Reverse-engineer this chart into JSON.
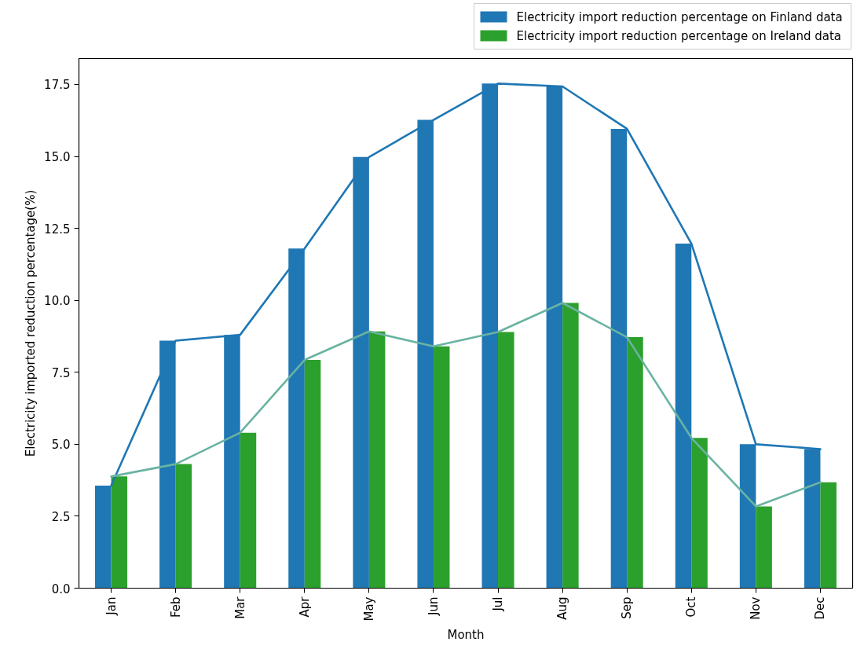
{
  "chart_data": {
    "type": "bar",
    "xlabel": "Month",
    "ylabel": "Electricity imported reduction percentage(%)",
    "categories": [
      "Jan",
      "Feb",
      "Mar",
      "Apr",
      "May",
      "Jun",
      "Jul",
      "Aug",
      "Sep",
      "Oct",
      "Nov",
      "Dec"
    ],
    "series": [
      {
        "name": "Electricity import reduction percentage on Finland data",
        "color": "#1f77b4",
        "values": [
          3.56,
          8.6,
          8.8,
          11.8,
          14.98,
          16.27,
          17.53,
          17.43,
          15.96,
          11.97,
          5.0,
          4.83
        ]
      },
      {
        "name": "Electricity import reduction percentage on Ireland data",
        "color": "#2ca02c",
        "values": [
          3.88,
          4.31,
          5.4,
          7.93,
          8.92,
          8.4,
          8.9,
          9.91,
          8.72,
          5.22,
          2.84,
          3.68
        ]
      },
      {
        "type": "line",
        "color": "#1f77b4",
        "values": [
          3.56,
          8.6,
          8.8,
          11.8,
          14.98,
          16.27,
          17.53,
          17.43,
          15.96,
          11.97,
          5.0,
          4.83
        ]
      },
      {
        "type": "line",
        "color": "#69b3a2",
        "values": [
          3.88,
          4.31,
          5.4,
          7.93,
          8.92,
          8.4,
          8.9,
          9.91,
          8.72,
          5.22,
          2.84,
          3.68
        ]
      }
    ],
    "ylim": [
      0,
      18.4
    ],
    "yticks": [
      {
        "value": 0,
        "label": "0.0"
      },
      2.5,
      {
        "value": 5,
        "label": "5.0"
      },
      7.5,
      {
        "value": 10,
        "label": "10.0"
      },
      12.5,
      {
        "value": 15,
        "label": "15.0"
      },
      17.5
    ],
    "legend": "top right"
  }
}
